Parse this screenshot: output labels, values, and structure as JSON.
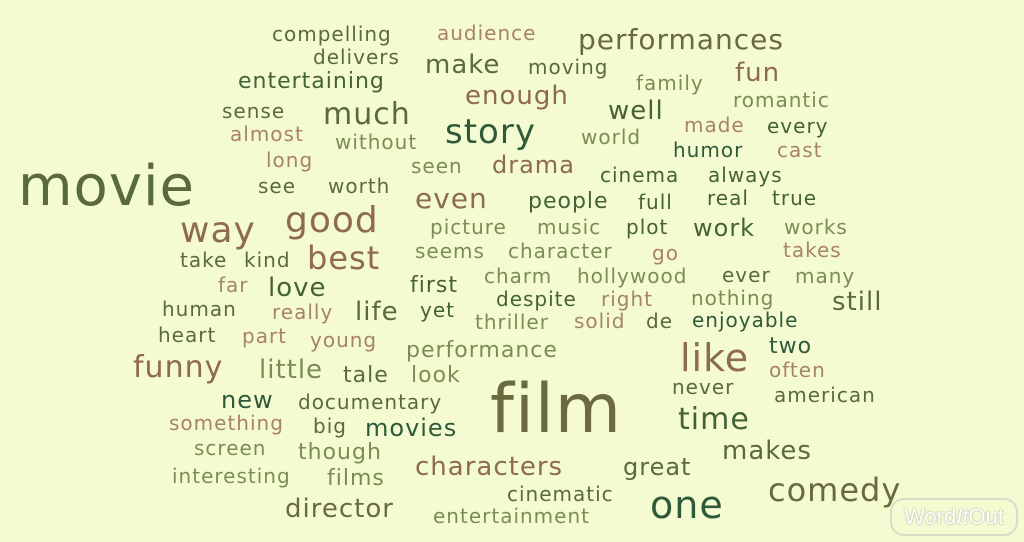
{
  "cloud": {
    "background": "#f4fbd1",
    "palette": [
      "#5a6b3a",
      "#446236",
      "#8e6a52",
      "#7b8d54",
      "#a8826a",
      "#2f5a3a",
      "#6b6a3e"
    ],
    "words": {
      "movie": "movie",
      "film": "film",
      "story": "story",
      "good": "good",
      "way": "way",
      "best": "best",
      "like": "like",
      "one": "one",
      "comedy": "comedy",
      "funny": "funny",
      "performances": "performances",
      "much": "much",
      "make": "make",
      "enough": "enough",
      "even": "even",
      "fun": "fun",
      "well": "well",
      "time": "time",
      "characters": "characters",
      "director": "director",
      "love": "love",
      "life": "life",
      "still": "still",
      "little": "little",
      "movies": "movies",
      "makes": "makes",
      "great": "great",
      "work": "work",
      "compelling": "compelling",
      "audience": "audience",
      "delivers": "delivers",
      "moving": "moving",
      "family": "family",
      "entertaining": "entertaining",
      "romantic": "romantic",
      "sense": "sense",
      "almost": "almost",
      "without": "without",
      "world": "world",
      "made": "made",
      "every": "every",
      "long": "long",
      "humor": "humor",
      "cast": "cast",
      "seen": "seen",
      "drama": "drama",
      "cinema": "cinema",
      "always": "always",
      "see": "see",
      "worth": "worth",
      "people": "people",
      "full": "full",
      "real": "real",
      "true": "true",
      "picture": "picture",
      "music": "music",
      "plot": "plot",
      "works": "works",
      "seems": "seems",
      "character": "character",
      "go": "go",
      "takes": "takes",
      "take": "take",
      "kind": "kind",
      "charm": "charm",
      "hollywood": "hollywood",
      "ever": "ever",
      "many": "many",
      "far": "far",
      "first": "first",
      "human": "human",
      "really": "really",
      "despite": "despite",
      "right": "right",
      "nothing": "nothing",
      "yet": "yet",
      "heart": "heart",
      "part": "part",
      "thriller": "thriller",
      "solid": "solid",
      "de": "de",
      "enjoyable": "enjoyable",
      "young": "young",
      "performance": "performance",
      "two": "two",
      "tale": "tale",
      "look": "look",
      "often": "often",
      "never": "never",
      "new": "new",
      "american": "american",
      "documentary": "documentary",
      "something": "something",
      "big": "big",
      "screen": "screen",
      "though": "though",
      "interesting": "interesting",
      "films": "films",
      "cinematic": "cinematic",
      "entertainment": "entertainment"
    }
  },
  "logo": {
    "part1": "Word",
    "part2": "It",
    "part3": "Out"
  }
}
